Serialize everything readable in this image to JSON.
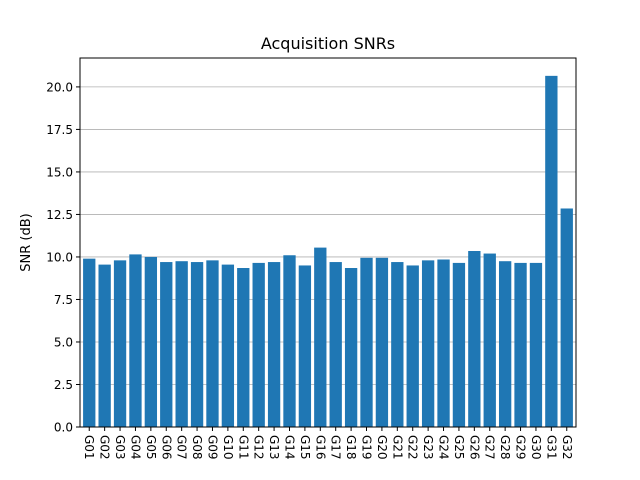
{
  "chart_data": {
    "type": "bar",
    "title": "Acquisition SNRs",
    "xlabel": "",
    "ylabel": "SNR (dB)",
    "categories": [
      "G01",
      "G02",
      "G03",
      "G04",
      "G05",
      "G06",
      "G07",
      "G08",
      "G09",
      "G10",
      "G11",
      "G12",
      "G13",
      "G14",
      "G15",
      "G16",
      "G17",
      "G18",
      "G19",
      "G20",
      "G21",
      "G22",
      "G23",
      "G24",
      "G25",
      "G26",
      "G27",
      "G28",
      "G29",
      "G30",
      "G31",
      "G32"
    ],
    "values": [
      9.9,
      9.55,
      9.8,
      10.15,
      10.0,
      9.7,
      9.75,
      9.7,
      9.8,
      9.55,
      9.35,
      9.65,
      9.7,
      10.1,
      9.5,
      10.55,
      9.7,
      9.35,
      9.95,
      9.95,
      9.7,
      9.5,
      9.8,
      9.85,
      9.65,
      10.35,
      10.2,
      9.75,
      9.65,
      9.65,
      20.65,
      12.85
    ],
    "ylim": [
      0,
      21.7
    ],
    "yticks": [
      "0.0",
      "2.5",
      "5.0",
      "7.5",
      "10.0",
      "12.5",
      "15.0",
      "17.5",
      "20.0"
    ],
    "grid": "y",
    "bar_color": "#1f77b4",
    "grid_color": "#b0b0b0",
    "legend": "none"
  }
}
